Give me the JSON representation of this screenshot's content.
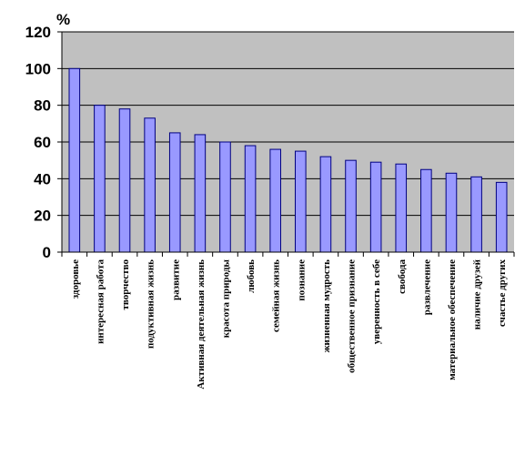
{
  "chart_data": {
    "type": "bar",
    "unit_label": "%",
    "ylim": [
      0,
      120
    ],
    "yticks": [
      "0",
      "20",
      "40",
      "60",
      "80",
      "100",
      "120"
    ],
    "grid": true,
    "legend": "none",
    "colors": {
      "plot_bg": "#c0c0c0",
      "bar_fill": "#9999ff",
      "bar_stroke": "#000080",
      "gridline": "#000000"
    },
    "categories": [
      "здоровье",
      "интересная работа",
      "творчество",
      "подуктивная жизнь",
      "развитие",
      "Активная деятельная жизнь",
      "красота природы",
      "любовь",
      "семейная жизнь",
      "познание",
      "жизненная мудрость",
      "общественное признание",
      "уверенность в себе",
      "свобода",
      "развлечение",
      "материальное обеспечение",
      "наличие друзей",
      "счастье других"
    ],
    "values": [
      100,
      80,
      78,
      73,
      65,
      64,
      60,
      58,
      56,
      55,
      52,
      50,
      49,
      48,
      45,
      43,
      41,
      38
    ]
  }
}
